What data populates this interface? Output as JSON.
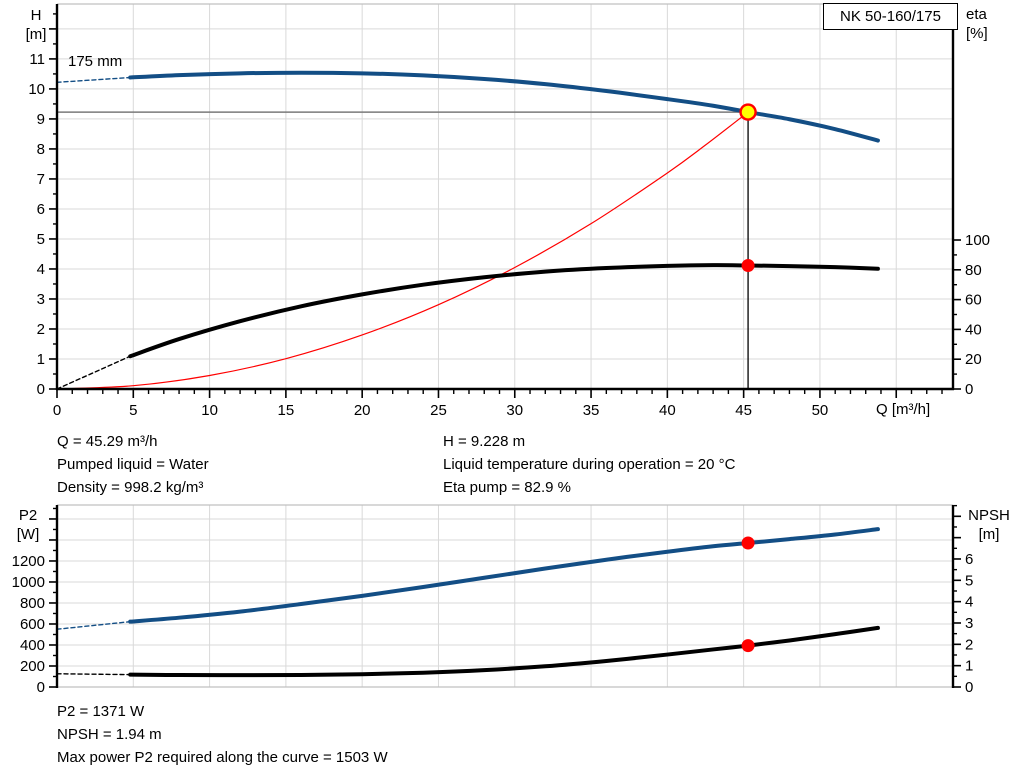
{
  "title_box": "NK 50-160/175",
  "impeller_label": "175 mm",
  "info": {
    "left": [
      "Q = 45.29 m³/h",
      "Pumped liquid = Water",
      "Density = 998.2 kg/m³"
    ],
    "right": [
      "H = 9.228 m",
      "Liquid temperature during operation = 20 °C",
      "Eta pump = 82.9 %"
    ],
    "footer": [
      "P2 = 1371 W",
      "NPSH = 1.94 m",
      "Max power P2 required along the curve = 1503 W"
    ]
  },
  "colors": {
    "curve_blue": "#134e85",
    "curve_black": "#000000",
    "curve_red": "#ff0000",
    "duty_fill": "#ffff00",
    "grid": "#d9d9d9",
    "frame": "#c0c0c0",
    "crosshair_h": "#7a7a7a",
    "crosshair_v": "#000000",
    "axis": "#000000"
  },
  "duty_point": {
    "q": 45.29,
    "h": 9.228,
    "eta": 82.9,
    "p2": 1371,
    "npsh": 1.94
  },
  "chart_data": [
    {
      "type": "line",
      "title": "NK 50-160/175",
      "x": {
        "min": 0,
        "max": 58.72,
        "major": 5,
        "minor": 1,
        "tick_max": 58,
        "labels": [
          0,
          5,
          10,
          15,
          20,
          25,
          30,
          35,
          40,
          45,
          50
        ],
        "unit_label": "Q [m³/h]",
        "ticks": true,
        "grid": true
      },
      "y_left": {
        "label": "H\n[m]",
        "min": 0,
        "max": 12.83,
        "major": 1,
        "minor": 0.5,
        "tick_max": 12.5,
        "labels": [
          0,
          1,
          2,
          3,
          4,
          5,
          6,
          7,
          8,
          9,
          10,
          11
        ],
        "grid": true
      },
      "y_right": {
        "label": "eta\n[%]",
        "min": 0,
        "max": 258.4,
        "major": 20,
        "minor": 10,
        "tick_max": 100,
        "labels": [
          0,
          20,
          40,
          60,
          80,
          100
        ],
        "grid": false
      },
      "series": [
        {
          "name": "system-curve",
          "axis": "left",
          "color": "#ff0000",
          "width": 1.2,
          "dash": false,
          "points": [
            [
              0,
              0
            ],
            [
              5,
              0.11
            ],
            [
              10,
              0.45
            ],
            [
              15,
              1.01
            ],
            [
              20,
              1.8
            ],
            [
              25,
              2.81
            ],
            [
              30,
              4.05
            ],
            [
              35,
              5.51
            ],
            [
              40,
              7.2
            ],
            [
              42.5,
              8.13
            ],
            [
              45.29,
              9.228
            ]
          ]
        },
        {
          "name": "efficiency-curve-lead",
          "axis": "right",
          "color": "#000000",
          "width": 1.4,
          "dash": true,
          "points": [
            [
              0,
              0
            ],
            [
              4.8,
              22
            ]
          ]
        },
        {
          "name": "efficiency-curve",
          "axis": "right",
          "color": "#000000",
          "width": 4,
          "dash": false,
          "points": [
            [
              4.8,
              22
            ],
            [
              8,
              33.5
            ],
            [
              12,
              45.5
            ],
            [
              16,
              55.5
            ],
            [
              20,
              63.5
            ],
            [
              24,
              70
            ],
            [
              28,
              75
            ],
            [
              32,
              78.8
            ],
            [
              36,
              81.2
            ],
            [
              40,
              82.6
            ],
            [
              43,
              83.1
            ],
            [
              45.29,
              82.9
            ],
            [
              48,
              82.5
            ],
            [
              51,
              81.8
            ],
            [
              53.8,
              80.7
            ]
          ]
        },
        {
          "name": "head-curve-lead",
          "axis": "left",
          "color": "#134e85",
          "width": 1.4,
          "dash": true,
          "points": [
            [
              0,
              10.22
            ],
            [
              4.8,
              10.38
            ]
          ]
        },
        {
          "name": "head-curve",
          "axis": "left",
          "color": "#134e85",
          "width": 4,
          "dash": false,
          "points": [
            [
              4.8,
              10.38
            ],
            [
              8,
              10.46
            ],
            [
              12,
              10.52
            ],
            [
              16,
              10.54
            ],
            [
              20,
              10.52
            ],
            [
              24,
              10.45
            ],
            [
              28,
              10.33
            ],
            [
              32,
              10.16
            ],
            [
              36,
              9.93
            ],
            [
              40,
              9.66
            ],
            [
              43,
              9.44
            ],
            [
              45.29,
              9.228
            ],
            [
              48,
              8.99
            ],
            [
              51,
              8.66
            ],
            [
              53.8,
              8.28
            ]
          ]
        }
      ],
      "crosshair": {
        "x": 45.29,
        "y": 9.228
      },
      "markers": [
        {
          "type": "dot",
          "axis": "right",
          "x": 45.29,
          "y": 82.9
        },
        {
          "type": "duty-point",
          "axis": "left",
          "x": 45.29,
          "y": 9.228
        }
      ]
    },
    {
      "type": "line",
      "title": "",
      "x": {
        "min": 0,
        "max": 58.72,
        "major": 5,
        "minor": 0,
        "tick_max": 0,
        "labels": [],
        "unit_label": "",
        "ticks": false,
        "grid": true
      },
      "y_left": {
        "label": "P2\n[W]",
        "min": 0,
        "max": 1733,
        "major": 200,
        "minor": 100,
        "tick_max": 1700,
        "labels": [
          0,
          200,
          400,
          600,
          800,
          1000,
          1200
        ],
        "grid": true
      },
      "y_right": {
        "label": "NPSH\n[m]",
        "min": 0,
        "max": 8.53,
        "major": 1,
        "minor": 0.5,
        "tick_max": 8.5,
        "labels": [
          0,
          1,
          2,
          3,
          4,
          5,
          6
        ],
        "grid": false
      },
      "series": [
        {
          "name": "npsh-curve-lead",
          "axis": "right",
          "color": "#000000",
          "width": 1.4,
          "dash": true,
          "points": [
            [
              0,
              0.62
            ],
            [
              4.8,
              0.58
            ]
          ]
        },
        {
          "name": "npsh-curve",
          "axis": "right",
          "color": "#000000",
          "width": 4,
          "dash": false,
          "points": [
            [
              4.8,
              0.58
            ],
            [
              8,
              0.56
            ],
            [
              12,
              0.555
            ],
            [
              16,
              0.565
            ],
            [
              20,
              0.6
            ],
            [
              24,
              0.67
            ],
            [
              28,
              0.79
            ],
            [
              32,
              0.97
            ],
            [
              36,
              1.22
            ],
            [
              40,
              1.52
            ],
            [
              43,
              1.76
            ],
            [
              45.29,
              1.94
            ],
            [
              48,
              2.18
            ],
            [
              51,
              2.48
            ],
            [
              53.8,
              2.77
            ]
          ]
        },
        {
          "name": "p2-curve-lead",
          "axis": "left",
          "color": "#134e85",
          "width": 1.4,
          "dash": true,
          "points": [
            [
              0,
              550
            ],
            [
              4.8,
              622
            ]
          ]
        },
        {
          "name": "p2-curve",
          "axis": "left",
          "color": "#134e85",
          "width": 4,
          "dash": false,
          "points": [
            [
              4.8,
              622
            ],
            [
              8,
              660
            ],
            [
              12,
              718
            ],
            [
              16,
              790
            ],
            [
              20,
              868
            ],
            [
              24,
              952
            ],
            [
              28,
              1040
            ],
            [
              32,
              1128
            ],
            [
              36,
              1212
            ],
            [
              40,
              1288
            ],
            [
              43,
              1340
            ],
            [
              45.29,
              1371
            ],
            [
              48,
              1408
            ],
            [
              51,
              1452
            ],
            [
              53.8,
              1503
            ]
          ]
        }
      ],
      "crosshair": null,
      "markers": [
        {
          "type": "dot",
          "axis": "left",
          "x": 45.29,
          "y": 1371
        },
        {
          "type": "dot",
          "axis": "right",
          "x": 45.29,
          "y": 1.94
        }
      ]
    }
  ]
}
